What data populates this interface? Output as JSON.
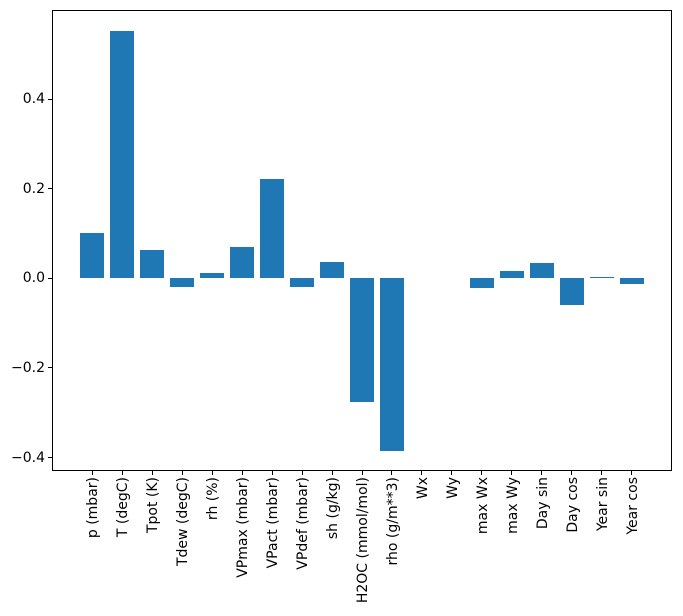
{
  "figure": {
    "background": "#ffffff",
    "axis_color": "#000000",
    "tick_label_color": "#000000"
  },
  "chart_data": {
    "type": "bar",
    "title": "",
    "xlabel": "",
    "ylabel": "",
    "categories": [
      "p (mbar)",
      "T (degC)",
      "Tpot (K)",
      "Tdew (degC)",
      "rh (%)",
      "VPmax (mbar)",
      "VPact (mbar)",
      "VPdef (mbar)",
      "sh (g/kg)",
      "H2OC (mmol/mol)",
      "rho (g/m**3)",
      "Wx",
      "Wy",
      "max Wx",
      "max Wy",
      "Day sin",
      "Day cos",
      "Year sin",
      "Year cos"
    ],
    "values": [
      0.102,
      0.553,
      0.064,
      -0.02,
      0.012,
      0.069,
      0.222,
      -0.019,
      0.036,
      -0.275,
      -0.386,
      0.0,
      0.0,
      -0.021,
      0.017,
      0.035,
      -0.059,
      0.004,
      -0.013
    ],
    "bar_color": "#1f77b4",
    "bar_width": 0.8,
    "xlim": [
      -1.34,
      19.34
    ],
    "ylim": [
      -0.43,
      0.599
    ],
    "yticks": [
      -0.4,
      -0.2,
      0.0,
      0.2,
      0.4
    ],
    "ytick_labels": [
      "−0.4",
      "−0.2",
      "0.0",
      "0.2",
      "0.4"
    ],
    "grid": false,
    "legend": null
  }
}
